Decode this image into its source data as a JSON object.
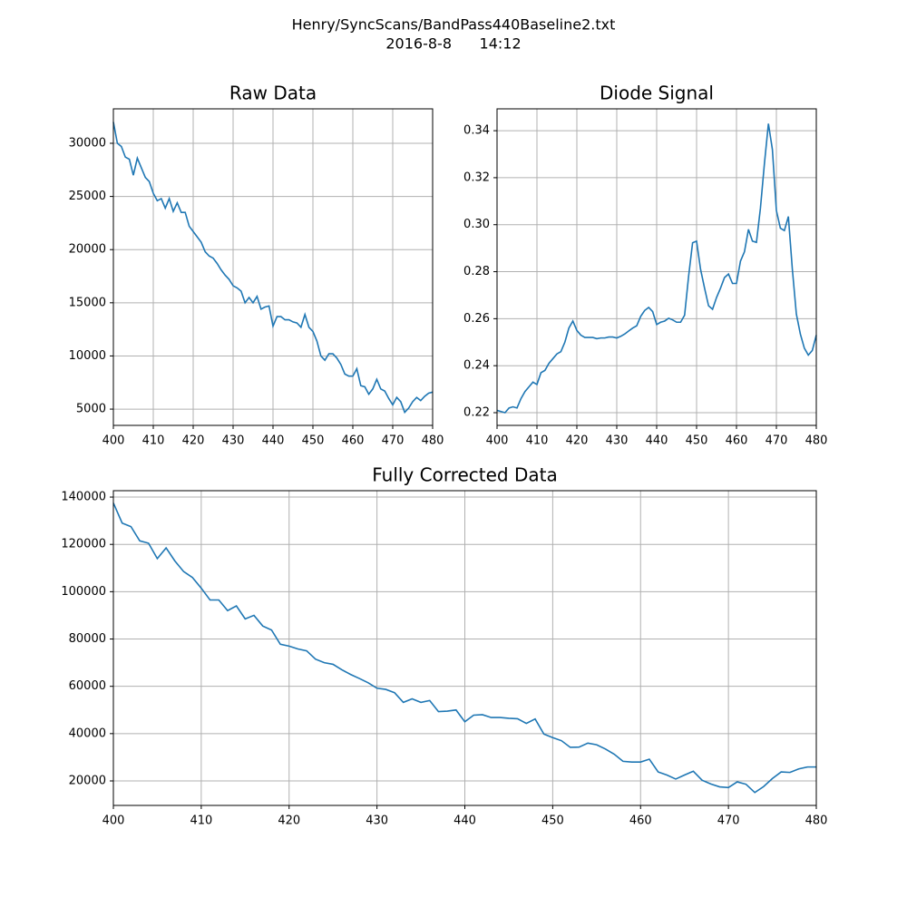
{
  "title": "Henry/SyncScans/BandPass440Baseline2.txt",
  "subtitle": "2016-8-8      14:12",
  "chart_data": [
    {
      "type": "line",
      "title": "Raw Data",
      "color": "#1f77b4",
      "grid": true,
      "x": [
        400,
        401,
        402,
        403,
        404,
        405,
        406,
        407,
        408,
        409,
        410,
        411,
        412,
        413,
        414,
        415,
        416,
        417,
        418,
        419,
        420,
        421,
        422,
        423,
        424,
        425,
        426,
        427,
        428,
        429,
        430,
        431,
        432,
        433,
        434,
        435,
        436,
        437,
        438,
        439,
        440,
        441,
        442,
        443,
        444,
        445,
        446,
        447,
        448,
        449,
        450,
        451,
        452,
        453,
        454,
        455,
        456,
        457,
        458,
        459,
        460,
        461,
        462,
        463,
        464,
        465,
        466,
        467,
        468,
        469,
        470,
        471,
        472,
        473,
        474,
        475,
        476,
        477,
        478,
        479,
        480
      ],
      "values": [
        32000,
        30000,
        29700,
        28700,
        28500,
        27000,
        28600,
        27700,
        26800,
        26400,
        25300,
        24600,
        24800,
        23900,
        24800,
        23600,
        24400,
        23500,
        23500,
        22200,
        21700,
        21200,
        20700,
        19800,
        19400,
        19200,
        18700,
        18100,
        17600,
        17200,
        16600,
        16400,
        16100,
        15000,
        15500,
        15000,
        15600,
        14400,
        14600,
        14700,
        12800,
        13700,
        13700,
        13400,
        13400,
        13200,
        13100,
        12700,
        13900,
        12700,
        12300,
        11400,
        10000,
        9600,
        10200,
        10200,
        9800,
        9200,
        8300,
        8100,
        8100,
        8800,
        7200,
        7100,
        6400,
        6900,
        7800,
        6900,
        6700,
        6000,
        5400,
        6100,
        5700,
        4700,
        5100,
        5700,
        6100,
        5800,
        6200,
        6500,
        6600
      ],
      "xlim": [
        400,
        480
      ],
      "xticks": [
        400,
        410,
        420,
        430,
        440,
        450,
        460,
        470,
        480
      ],
      "ylim": [
        3470,
        33240
      ],
      "yticks": [
        5000,
        10000,
        15000,
        20000,
        25000,
        30000
      ]
    },
    {
      "type": "line",
      "title": "Diode Signal",
      "color": "#1f77b4",
      "grid": true,
      "x": [
        400,
        401,
        402,
        403,
        404,
        405,
        406,
        407,
        408,
        409,
        410,
        411,
        412,
        413,
        414,
        415,
        416,
        417,
        418,
        419,
        420,
        421,
        422,
        423,
        424,
        425,
        426,
        427,
        428,
        429,
        430,
        431,
        432,
        433,
        434,
        435,
        436,
        437,
        438,
        439,
        440,
        441,
        442,
        443,
        444,
        445,
        446,
        447,
        448,
        449,
        450,
        451,
        452,
        453,
        454,
        455,
        456,
        457,
        458,
        459,
        460,
        461,
        462,
        463,
        464,
        465,
        466,
        467,
        468,
        469,
        470,
        471,
        472,
        473,
        474,
        475,
        476,
        477,
        478,
        479,
        480
      ],
      "values": [
        0.221,
        0.2205,
        0.22,
        0.222,
        0.2225,
        0.222,
        0.226,
        0.229,
        0.231,
        0.233,
        0.232,
        0.237,
        0.238,
        0.241,
        0.243,
        0.245,
        0.246,
        0.25,
        0.256,
        0.259,
        0.255,
        0.253,
        0.252,
        0.252,
        0.252,
        0.2515,
        0.2518,
        0.2518,
        0.2522,
        0.2522,
        0.2518,
        0.2525,
        0.2535,
        0.2548,
        0.256,
        0.257,
        0.261,
        0.2635,
        0.2648,
        0.263,
        0.2575,
        0.2585,
        0.259,
        0.2602,
        0.2595,
        0.2585,
        0.2585,
        0.2615,
        0.278,
        0.2923,
        0.293,
        0.281,
        0.273,
        0.2655,
        0.264,
        0.269,
        0.273,
        0.2775,
        0.279,
        0.275,
        0.275,
        0.2845,
        0.2885,
        0.298,
        0.293,
        0.2925,
        0.307,
        0.326,
        0.343,
        0.332,
        0.306,
        0.2985,
        0.2975,
        0.3035,
        0.281,
        0.262,
        0.2535,
        0.2475,
        0.2445,
        0.2465,
        0.253
      ],
      "xlim": [
        400,
        480
      ],
      "xticks": [
        400,
        410,
        420,
        430,
        440,
        450,
        460,
        470,
        480
      ],
      "ylim": [
        0.2146,
        0.3493
      ],
      "yticks": [
        0.22,
        0.24,
        0.26,
        0.28,
        {
          "value": 0.3,
          "label": "0.30"
        },
        0.32,
        0.34
      ]
    },
    {
      "type": "line",
      "title": "Fully Corrected Data",
      "color": "#1f77b4",
      "grid": true,
      "x": [
        400,
        401,
        402,
        403,
        404,
        405,
        406,
        407,
        408,
        409,
        410,
        411,
        412,
        413,
        414,
        415,
        416,
        417,
        418,
        419,
        420,
        421,
        422,
        423,
        424,
        425,
        426,
        427,
        428,
        429,
        430,
        431,
        432,
        433,
        434,
        435,
        436,
        437,
        438,
        439,
        440,
        441,
        442,
        443,
        444,
        445,
        446,
        447,
        448,
        449,
        450,
        451,
        452,
        453,
        454,
        455,
        456,
        457,
        458,
        459,
        460,
        461,
        462,
        463,
        464,
        465,
        466,
        467,
        468,
        469,
        470,
        471,
        472,
        473,
        474,
        475,
        476,
        477,
        478,
        479,
        480
      ],
      "values": [
        137500,
        129000,
        127500,
        121500,
        120500,
        114000,
        118500,
        113000,
        108500,
        106000,
        101500,
        96500,
        96500,
        92000,
        94000,
        88500,
        90000,
        85500,
        83800,
        77800,
        77000,
        75800,
        75000,
        71500,
        70000,
        69300,
        67000,
        65000,
        63300,
        61500,
        59200,
        58700,
        57300,
        53200,
        54700,
        53200,
        54000,
        49300,
        49500,
        50000,
        45000,
        47800,
        48000,
        46800,
        46800,
        46500,
        46300,
        44300,
        46200,
        39800,
        38300,
        37000,
        34200,
        34300,
        36000,
        35300,
        33500,
        31300,
        28300,
        28000,
        28000,
        29200,
        23800,
        22500,
        20800,
        22500,
        24100,
        20300,
        18700,
        17500,
        17200,
        19600,
        18600,
        15100,
        17600,
        21000,
        23800,
        23600,
        25100,
        25900,
        25900
      ],
      "xlim": [
        400,
        480
      ],
      "xticks": [
        400,
        410,
        420,
        430,
        440,
        450,
        460,
        470,
        480
      ],
      "ylim": [
        9650,
        142700
      ],
      "yticks": [
        20000,
        40000,
        60000,
        80000,
        100000,
        120000,
        140000
      ]
    }
  ]
}
